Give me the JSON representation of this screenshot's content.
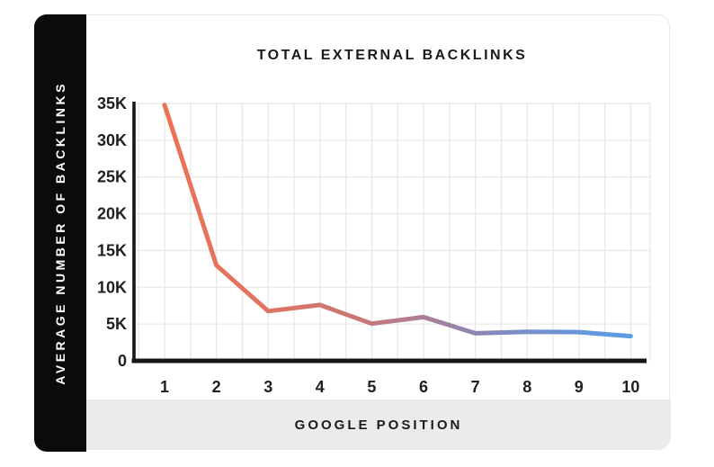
{
  "title": "TOTAL EXTERNAL BACKLINKS",
  "sidebar": {
    "label": "AVERAGE NUMBER OF BACKLINKS",
    "background": "#0b0b0b",
    "text_color": "#ffffff"
  },
  "x_axis_band": {
    "label": "GOOGLE POSITION",
    "background": "#ebebeb"
  },
  "chart_data": {
    "type": "line",
    "title": "TOTAL EXTERNAL BACKLINKS",
    "xlabel": "GOOGLE POSITION",
    "ylabel": "AVERAGE NUMBER OF BACKLINKS",
    "x": [
      1,
      2,
      3,
      4,
      5,
      6,
      7,
      8,
      9,
      10
    ],
    "values": [
      34800,
      13000,
      6750,
      7600,
      5050,
      5950,
      3750,
      3950,
      3900,
      3350
    ],
    "y_tick_labels": [
      "35K",
      "30K",
      "25K",
      "20K",
      "15K",
      "10K",
      "5K",
      "0"
    ],
    "y_tick_values": [
      35000,
      30000,
      25000,
      20000,
      15000,
      10000,
      5000,
      0
    ],
    "ylim": [
      0,
      35000
    ],
    "xlim": [
      1,
      10
    ],
    "grid": true,
    "legend": "none",
    "grid_color": "#e8e8e8",
    "axis_color": "#161616",
    "tick_color": "#1f1f1f",
    "line_width": 5,
    "gradient_stops": [
      {
        "offset": 0.0,
        "color": "#ed7154"
      },
      {
        "offset": 0.22,
        "color": "#df7463"
      },
      {
        "offset": 0.42,
        "color": "#c97877"
      },
      {
        "offset": 0.56,
        "color": "#aa7e99"
      },
      {
        "offset": 0.7,
        "color": "#8589bc"
      },
      {
        "offset": 0.85,
        "color": "#6c94d4"
      },
      {
        "offset": 1.0,
        "color": "#5b9de4"
      }
    ]
  }
}
